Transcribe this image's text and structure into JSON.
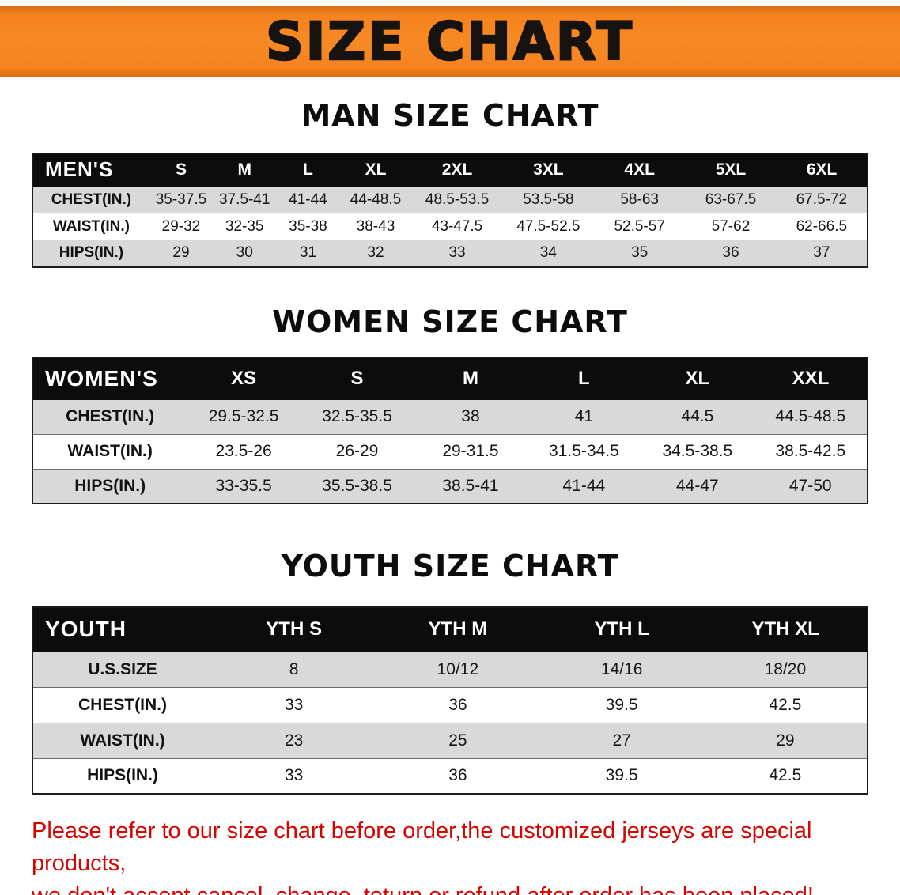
{
  "banner": {
    "title": "SIZE CHART"
  },
  "colors": {
    "banner_orange": "#f5831f",
    "header_black": "#0c0c0c",
    "shaded_row_gray": "#d9d9d9",
    "note_red": "#d40500"
  },
  "sections": [
    {
      "id": "men",
      "heading": "MAN SIZE CHART",
      "table": {
        "header": [
          "MEN'S",
          "S",
          "M",
          "L",
          "XL",
          "2XL",
          "3XL",
          "4XL",
          "5XL",
          "6XL"
        ],
        "rows": [
          {
            "label": "CHEST(IN.)",
            "values": [
              "35-37.5",
              "37.5-41",
              "41-44",
              "44-48.5",
              "48.5-53.5",
              "53.5-58",
              "58-63",
              "63-67.5",
              "67.5-72"
            ]
          },
          {
            "label": "WAIST(IN.)",
            "values": [
              "29-32",
              "32-35",
              "35-38",
              "38-43",
              "43-47.5",
              "47.5-52.5",
              "52.5-57",
              "57-62",
              "62-66.5"
            ]
          },
          {
            "label": "HIPS(IN.)",
            "values": [
              "29",
              "30",
              "31",
              "32",
              "33",
              "34",
              "35",
              "36",
              "37"
            ]
          }
        ]
      }
    },
    {
      "id": "women",
      "heading": "WOMEN SIZE CHART",
      "table": {
        "header": [
          "WOMEN'S",
          "XS",
          "S",
          "M",
          "L",
          "XL",
          "XXL"
        ],
        "rows": [
          {
            "label": "CHEST(IN.)",
            "values": [
              "29.5-32.5",
              "32.5-35.5",
              "38",
              "41",
              "44.5",
              "44.5-48.5"
            ]
          },
          {
            "label": "WAIST(IN.)",
            "values": [
              "23.5-26",
              "26-29",
              "29-31.5",
              "31.5-34.5",
              "34.5-38.5",
              "38.5-42.5"
            ]
          },
          {
            "label": "HIPS(IN.)",
            "values": [
              "33-35.5",
              "35.5-38.5",
              "38.5-41",
              "41-44",
              "44-47",
              "47-50"
            ]
          }
        ]
      }
    },
    {
      "id": "youth",
      "heading": "YOUTH SIZE CHART",
      "table": {
        "header": [
          "YOUTH",
          "YTH S",
          "YTH M",
          "YTH L",
          "YTH XL"
        ],
        "rows": [
          {
            "label": "U.S.SIZE",
            "values": [
              "8",
              "10/12",
              "14/16",
              "18/20"
            ]
          },
          {
            "label": "CHEST(IN.)",
            "values": [
              "33",
              "36",
              "39.5",
              "42.5"
            ]
          },
          {
            "label": "WAIST(IN.)",
            "values": [
              "23",
              "25",
              "27",
              "29"
            ]
          },
          {
            "label": "HIPS(IN.)",
            "values": [
              "33",
              "36",
              "39.5",
              "42.5"
            ]
          }
        ]
      }
    }
  ],
  "footer": {
    "lines": [
      "Please refer to our size chart before order,the customized jerseys are special products,",
      "we don't accept cancel, change, teturn or refund after order has been placed!"
    ]
  }
}
